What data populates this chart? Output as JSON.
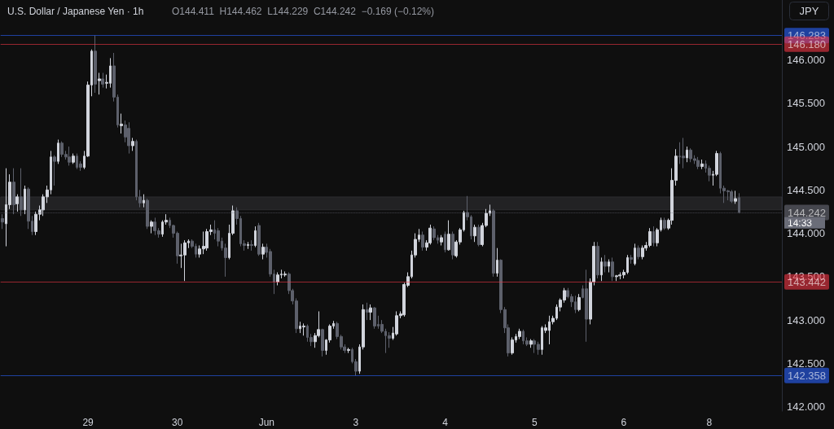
{
  "chart_data": {
    "type": "candlestick",
    "title": "U.S. Dollar / Japanese Yen · 1h",
    "subtitle": "O144.411  H144.462  L144.229  C144.242  −0.169 (−0.12%)",
    "annotations": [
      "JPY",
      "14:33"
    ],
    "categories": [
      null,
      null,
      null,
      null,
      null,
      null,
      null,
      null,
      null,
      null,
      null,
      null,
      null,
      null,
      null,
      null,
      null,
      null,
      null,
      null,
      null,
      null,
      null,
      "29",
      null,
      null,
      null,
      null,
      null,
      null,
      null,
      null,
      null,
      null,
      null,
      null,
      null,
      null,
      null,
      null,
      null,
      null,
      null,
      null,
      null,
      null,
      null,
      "30",
      null,
      null,
      null,
      null,
      null,
      null,
      null,
      null,
      null,
      null,
      null,
      null,
      null,
      null,
      null,
      null,
      null,
      null,
      null,
      null,
      null,
      null,
      null,
      "Jun",
      null,
      null,
      null,
      null,
      null,
      null,
      null,
      null,
      null,
      null,
      null,
      null,
      null,
      null,
      null,
      null,
      null,
      null,
      null,
      null,
      null,
      null,
      null,
      "3",
      null,
      null,
      null,
      null,
      null,
      null,
      null,
      null,
      null,
      null,
      null,
      null,
      null,
      null,
      null,
      null,
      null,
      null,
      null,
      null,
      null,
      null,
      null,
      "4",
      null,
      null,
      null,
      null,
      null,
      null,
      null,
      null,
      null,
      null,
      null,
      null,
      null,
      null,
      null,
      null,
      null,
      null,
      null,
      null,
      null,
      null,
      null,
      "5",
      null,
      null,
      null,
      null,
      null,
      null,
      null,
      null,
      null,
      null,
      null,
      null,
      null,
      null,
      null,
      null,
      null,
      null,
      null,
      null,
      null,
      null,
      null,
      "6",
      null,
      null,
      null,
      null,
      null,
      null,
      null,
      null,
      null,
      null,
      null,
      null,
      null,
      null,
      null,
      null,
      null,
      null,
      null,
      null,
      null,
      null,
      "8",
      null,
      null,
      null,
      null,
      null,
      null,
      null,
      null
    ],
    "ohlc": [
      [
        144.17,
        144.22,
        144.05,
        144.13
      ],
      [
        144.11,
        144.75,
        143.85,
        144.33
      ],
      [
        144.33,
        144.68,
        144.28,
        144.59
      ],
      [
        144.59,
        144.75,
        144.22,
        144.33
      ],
      [
        144.34,
        144.45,
        144.25,
        144.42
      ],
      [
        144.42,
        144.75,
        144.2,
        144.27
      ],
      [
        144.27,
        144.55,
        144.22,
        144.51
      ],
      [
        144.51,
        144.53,
        144.05,
        144.14
      ],
      [
        144.14,
        144.2,
        143.98,
        144.02
      ],
      [
        144.02,
        144.25,
        143.98,
        144.22
      ],
      [
        144.22,
        144.32,
        144.15,
        144.27
      ],
      [
        144.27,
        144.45,
        144.2,
        144.42
      ],
      [
        144.42,
        144.55,
        144.35,
        144.5
      ],
      [
        144.5,
        144.95,
        144.45,
        144.88
      ],
      [
        144.88,
        144.9,
        144.55,
        144.83
      ],
      [
        144.83,
        145.08,
        144.8,
        145.04
      ],
      [
        145.04,
        145.06,
        144.88,
        144.91
      ],
      [
        144.91,
        144.95,
        144.85,
        144.88
      ],
      [
        144.88,
        145.0,
        144.78,
        144.82
      ],
      [
        144.82,
        144.92,
        144.8,
        144.89
      ],
      [
        144.89,
        144.92,
        144.74,
        144.76
      ],
      [
        144.8,
        144.83,
        144.72,
        144.76
      ],
      [
        144.76,
        144.95,
        144.74,
        144.89
      ],
      [
        144.89,
        145.75,
        144.88,
        145.71
      ],
      [
        145.71,
        146.12,
        145.58,
        146.1
      ],
      [
        146.1,
        146.28,
        145.62,
        145.72
      ],
      [
        145.76,
        145.85,
        145.6,
        145.78
      ],
      [
        145.78,
        145.85,
        145.68,
        145.72
      ],
      [
        145.73,
        145.83,
        145.67,
        145.74
      ],
      [
        145.73,
        146.02,
        145.68,
        145.93
      ],
      [
        145.93,
        146.08,
        145.52,
        145.57
      ],
      [
        145.57,
        145.6,
        145.22,
        145.25
      ],
      [
        145.24,
        145.38,
        145.15,
        145.26
      ],
      [
        145.25,
        145.3,
        145.05,
        145.11
      ],
      [
        145.21,
        145.28,
        144.92,
        145.01
      ],
      [
        145.01,
        145.1,
        144.95,
        145.06
      ],
      [
        145.06,
        145.08,
        144.38,
        144.42
      ],
      [
        144.42,
        144.5,
        144.3,
        144.35
      ],
      [
        144.35,
        144.45,
        144.3,
        144.38
      ],
      [
        144.38,
        144.4,
        144.05,
        144.08
      ],
      [
        144.08,
        144.15,
        144.0,
        144.13
      ],
      [
        144.13,
        144.18,
        143.98,
        144.03
      ],
      [
        144.03,
        144.06,
        143.95,
        143.99
      ],
      [
        143.99,
        144.15,
        143.96,
        144.13
      ],
      [
        144.13,
        144.22,
        144.1,
        144.15
      ],
      [
        144.15,
        144.18,
        144.06,
        144.09
      ],
      [
        144.09,
        144.1,
        143.95,
        144.0
      ],
      [
        144.0,
        144.02,
        143.65,
        143.74
      ],
      [
        143.74,
        143.88,
        143.6,
        143.75
      ],
      [
        143.75,
        143.92,
        143.45,
        143.89
      ],
      [
        143.89,
        143.93,
        143.83,
        143.91
      ],
      [
        143.91,
        143.93,
        143.83,
        143.85
      ],
      [
        143.85,
        143.88,
        143.72,
        143.76
      ],
      [
        143.76,
        143.86,
        143.72,
        143.82
      ],
      [
        143.82,
        144.02,
        143.76,
        143.85
      ],
      [
        143.83,
        144.05,
        143.8,
        144.02
      ],
      [
        144.02,
        144.1,
        143.98,
        144.04
      ],
      [
        144.04,
        144.15,
        143.93,
        144.0
      ],
      [
        144.03,
        144.06,
        143.85,
        143.91
      ],
      [
        143.91,
        143.95,
        143.8,
        143.83
      ],
      [
        143.83,
        143.88,
        143.5,
        143.72
      ],
      [
        143.72,
        144.1,
        143.7,
        144.0
      ],
      [
        144.0,
        144.32,
        143.98,
        144.26
      ],
      [
        144.26,
        144.3,
        144.1,
        144.17
      ],
      [
        144.17,
        144.2,
        143.85,
        143.88
      ],
      [
        143.88,
        143.92,
        143.8,
        143.86
      ],
      [
        143.86,
        143.9,
        143.82,
        143.87
      ],
      [
        143.87,
        143.92,
        143.8,
        143.86
      ],
      [
        143.86,
        144.08,
        143.84,
        144.03
      ],
      [
        144.09,
        144.12,
        143.74,
        143.76
      ],
      [
        143.76,
        143.88,
        143.7,
        143.84
      ],
      [
        143.84,
        143.88,
        143.72,
        143.78
      ],
      [
        143.79,
        143.82,
        143.5,
        143.53
      ],
      [
        143.53,
        143.58,
        143.3,
        143.44
      ],
      [
        143.44,
        143.55,
        143.4,
        143.52
      ],
      [
        143.52,
        143.58,
        143.48,
        143.53
      ],
      [
        143.52,
        143.56,
        143.5,
        143.53
      ],
      [
        143.53,
        143.55,
        143.3,
        143.34
      ],
      [
        143.34,
        143.36,
        143.18,
        143.22
      ],
      [
        143.22,
        143.25,
        142.85,
        142.9
      ],
      [
        142.9,
        142.98,
        142.85,
        142.93
      ],
      [
        142.92,
        142.96,
        142.82,
        142.93
      ],
      [
        142.93,
        142.95,
        142.75,
        142.8
      ],
      [
        142.8,
        142.84,
        142.7,
        142.75
      ],
      [
        142.75,
        142.85,
        142.68,
        142.82
      ],
      [
        142.82,
        143.1,
        142.8,
        142.89
      ],
      [
        142.89,
        142.9,
        142.58,
        142.65
      ],
      [
        142.65,
        142.78,
        142.6,
        142.77
      ],
      [
        142.77,
        142.95,
        142.74,
        142.93
      ],
      [
        142.93,
        142.99,
        142.9,
        142.96
      ],
      [
        142.96,
        142.98,
        142.78,
        142.81
      ],
      [
        142.81,
        142.83,
        142.66,
        142.69
      ],
      [
        142.69,
        142.72,
        142.62,
        142.65
      ],
      [
        142.65,
        142.68,
        142.62,
        142.66
      ],
      [
        142.66,
        142.68,
        142.5,
        142.52
      ],
      [
        142.52,
        142.55,
        142.36,
        142.41
      ],
      [
        142.41,
        142.72,
        142.38,
        142.69
      ],
      [
        142.69,
        143.18,
        142.66,
        143.12
      ],
      [
        143.12,
        143.2,
        143.0,
        143.09
      ],
      [
        143.09,
        143.18,
        143.0,
        143.14
      ],
      [
        143.14,
        143.15,
        142.9,
        142.93
      ],
      [
        142.95,
        143.05,
        142.9,
        142.93
      ],
      [
        142.95,
        143.0,
        142.85,
        142.87
      ],
      [
        142.87,
        142.9,
        142.62,
        142.82
      ],
      [
        142.82,
        142.86,
        142.68,
        142.79
      ],
      [
        142.79,
        142.92,
        142.77,
        142.85
      ],
      [
        142.84,
        143.1,
        142.82,
        143.05
      ],
      [
        143.05,
        143.1,
        143.02,
        143.07
      ],
      [
        143.06,
        143.43,
        143.04,
        143.41
      ],
      [
        143.4,
        143.55,
        143.38,
        143.5
      ],
      [
        143.5,
        143.8,
        143.48,
        143.75
      ],
      [
        143.75,
        144.0,
        143.72,
        143.93
      ],
      [
        143.93,
        144.05,
        143.9,
        143.98
      ],
      [
        143.98,
        144.02,
        143.8,
        143.84
      ],
      [
        143.84,
        143.92,
        143.8,
        143.89
      ],
      [
        143.89,
        144.1,
        143.87,
        144.06
      ],
      [
        144.05,
        144.08,
        143.92,
        143.95
      ],
      [
        143.95,
        143.98,
        143.88,
        143.92
      ],
      [
        143.9,
        143.98,
        143.86,
        143.95
      ],
      [
        143.99,
        144.02,
        143.78,
        143.81
      ],
      [
        143.81,
        144.15,
        143.8,
        143.99
      ],
      [
        143.99,
        144.02,
        143.7,
        143.75
      ],
      [
        143.74,
        143.92,
        143.72,
        143.9
      ],
      [
        143.9,
        144.06,
        143.87,
        144.04
      ],
      [
        144.04,
        144.26,
        144.02,
        144.24
      ],
      [
        144.24,
        144.43,
        144.15,
        144.19
      ],
      [
        144.19,
        144.21,
        143.93,
        143.97
      ],
      [
        143.97,
        144.1,
        143.9,
        144.07
      ],
      [
        144.07,
        144.1,
        143.85,
        143.87
      ],
      [
        143.87,
        144.12,
        143.85,
        144.09
      ],
      [
        144.09,
        144.28,
        144.07,
        144.23
      ],
      [
        144.23,
        144.33,
        144.2,
        144.26
      ],
      [
        144.26,
        144.28,
        143.5,
        143.54
      ],
      [
        143.54,
        143.83,
        143.5,
        143.69
      ],
      [
        143.69,
        143.7,
        143.08,
        143.12
      ],
      [
        143.12,
        143.15,
        142.85,
        142.91
      ],
      [
        142.91,
        142.95,
        142.58,
        142.62
      ],
      [
        142.62,
        142.8,
        142.6,
        142.77
      ],
      [
        142.77,
        142.84,
        142.74,
        142.81
      ],
      [
        142.81,
        142.9,
        142.78,
        142.87
      ],
      [
        142.87,
        142.89,
        142.72,
        142.76
      ],
      [
        142.76,
        142.8,
        142.7,
        142.72
      ],
      [
        142.72,
        142.78,
        142.68,
        142.76
      ],
      [
        142.76,
        142.78,
        142.62,
        142.72
      ],
      [
        142.72,
        142.75,
        142.6,
        142.66
      ],
      [
        142.66,
        142.93,
        142.6,
        142.91
      ],
      [
        142.88,
        142.95,
        142.85,
        142.91
      ],
      [
        142.88,
        143.05,
        142.72,
        142.98
      ],
      [
        142.98,
        143.05,
        142.95,
        143.02
      ],
      [
        143.02,
        143.18,
        143.0,
        143.15
      ],
      [
        143.15,
        143.25,
        143.1,
        143.23
      ],
      [
        143.23,
        143.37,
        143.2,
        143.34
      ],
      [
        143.34,
        143.37,
        143.25,
        143.27
      ],
      [
        143.27,
        143.3,
        143.15,
        143.21
      ],
      [
        143.21,
        143.28,
        143.08,
        143.12
      ],
      [
        143.12,
        143.3,
        143.1,
        143.26
      ],
      [
        143.36,
        143.4,
        143.25,
        143.26
      ],
      [
        143.36,
        143.58,
        142.75,
        143.01
      ],
      [
        143.01,
        143.48,
        142.95,
        143.44
      ],
      [
        143.44,
        143.9,
        143.4,
        143.85
      ],
      [
        143.85,
        143.9,
        143.48,
        143.52
      ],
      [
        143.52,
        143.72,
        143.45,
        143.67
      ],
      [
        143.67,
        143.75,
        143.55,
        143.62
      ],
      [
        143.62,
        143.7,
        143.55,
        143.67
      ],
      [
        143.67,
        143.72,
        143.45,
        143.5
      ],
      [
        143.5,
        143.52,
        143.45,
        143.51
      ],
      [
        143.51,
        143.55,
        143.47,
        143.52
      ],
      [
        143.52,
        143.58,
        143.48,
        143.55
      ],
      [
        143.55,
        143.75,
        143.53,
        143.72
      ],
      [
        143.72,
        143.75,
        143.65,
        143.7
      ],
      [
        143.65,
        143.88,
        143.63,
        143.83
      ],
      [
        143.83,
        143.86,
        143.7,
        143.73
      ],
      [
        143.73,
        143.86,
        143.7,
        143.83
      ],
      [
        143.83,
        143.9,
        143.8,
        143.86
      ],
      [
        143.86,
        144.06,
        143.84,
        144.02
      ],
      [
        144.02,
        144.08,
        143.85,
        143.89
      ],
      [
        143.89,
        144.06,
        143.85,
        144.04
      ],
      [
        144.04,
        144.18,
        144.02,
        144.15
      ],
      [
        144.15,
        144.18,
        144.04,
        144.06
      ],
      [
        144.06,
        144.17,
        144.04,
        144.15
      ],
      [
        144.15,
        144.75,
        144.1,
        144.61
      ],
      [
        144.61,
        144.97,
        144.55,
        144.89
      ],
      [
        144.89,
        145.05,
        144.8,
        144.88
      ],
      [
        144.89,
        145.1,
        144.75,
        144.87
      ],
      [
        144.87,
        145.0,
        144.82,
        144.96
      ],
      [
        144.96,
        144.98,
        144.82,
        144.86
      ],
      [
        144.86,
        144.9,
        144.8,
        144.84
      ],
      [
        144.84,
        144.88,
        144.74,
        144.77
      ],
      [
        144.77,
        144.85,
        144.74,
        144.8
      ],
      [
        144.8,
        144.84,
        144.7,
        144.75
      ],
      [
        144.75,
        144.78,
        144.6,
        144.67
      ],
      [
        144.67,
        144.72,
        144.55,
        144.68
      ],
      [
        144.68,
        144.95,
        144.66,
        144.92
      ],
      [
        144.92,
        144.94,
        144.46,
        144.52
      ],
      [
        144.52,
        144.55,
        144.35,
        144.49
      ],
      [
        144.49,
        144.5,
        144.38,
        144.48
      ],
      [
        144.48,
        144.5,
        144.35,
        144.37
      ],
      [
        144.37,
        144.49,
        144.34,
        144.4
      ],
      [
        144.411,
        144.462,
        144.229,
        144.242
      ]
    ],
    "colors": [
      "#5d606b",
      "#d1d4dc",
      "#d1d4dc",
      "#5d606b",
      "#d1d4dc",
      "#5d606b",
      "#d1d4dc",
      "#5d606b",
      "#5d606b",
      "#d1d4dc",
      "#d1d4dc",
      "#d1d4dc",
      "#d1d4dc",
      "#d1d4dc",
      "#5d606b",
      "#d1d4dc",
      "#5d606b",
      "#5d606b",
      "#5d606b",
      "#d1d4dc",
      "#5d606b",
      "#5d606b",
      "#d1d4dc",
      "#d1d4dc",
      "#d1d4dc",
      "#5d606b",
      "#d1d4dc",
      "#5d606b",
      "#d1d4dc",
      "#d1d4dc",
      "#5d606b",
      "#5d606b",
      "#d1d4dc",
      "#5d606b",
      "#5d606b",
      "#d1d4dc",
      "#5d606b",
      "#5d606b",
      "#d1d4dc",
      "#5d606b",
      "#d1d4dc",
      "#5d606b",
      "#5d606b",
      "#d1d4dc",
      "#d1d4dc",
      "#5d606b",
      "#5d606b",
      "#5d606b",
      "#d1d4dc",
      "#d1d4dc",
      "#d1d4dc",
      "#5d606b",
      "#5d606b",
      "#d1d4dc",
      "#d1d4dc",
      "#d1d4dc",
      "#d1d4dc",
      "#5d606b",
      "#5d606b",
      "#5d606b",
      "#5d606b",
      "#d1d4dc",
      "#d1d4dc",
      "#5d606b",
      "#5d606b",
      "#5d606b",
      "#d1d4dc",
      "#5d606b",
      "#d1d4dc",
      "#5d606b",
      "#d1d4dc",
      "#5d606b",
      "#5d606b",
      "#5d606b",
      "#d1d4dc",
      "#d1d4dc",
      "#d1d4dc",
      "#5d606b",
      "#5d606b",
      "#5d606b",
      "#d1d4dc",
      "#d1d4dc",
      "#5d606b",
      "#5d606b",
      "#d1d4dc",
      "#d1d4dc",
      "#5d606b",
      "#d1d4dc",
      "#d1d4dc",
      "#d1d4dc",
      "#5d606b",
      "#5d606b",
      "#5d606b",
      "#d1d4dc",
      "#5d606b",
      "#5d606b",
      "#d1d4dc",
      "#d1d4dc",
      "#5d606b",
      "#d1d4dc",
      "#5d606b",
      "#5d606b",
      "#5d606b",
      "#5d606b",
      "#5d606b",
      "#d1d4dc",
      "#d1d4dc",
      "#d1d4dc",
      "#d1d4dc",
      "#d1d4dc",
      "#d1d4dc",
      "#d1d4dc",
      "#d1d4dc",
      "#5d606b",
      "#d1d4dc",
      "#d1d4dc",
      "#5d606b",
      "#5d606b",
      "#d1d4dc",
      "#5d606b",
      "#d1d4dc",
      "#5d606b",
      "#d1d4dc",
      "#d1d4dc",
      "#d1d4dc",
      "#5d606b",
      "#5d606b",
      "#d1d4dc",
      "#5d606b",
      "#d1d4dc",
      "#d1d4dc",
      "#d1d4dc",
      "#5d606b",
      "#d1d4dc",
      "#5d606b",
      "#5d606b",
      "#5d606b",
      "#d1d4dc",
      "#d1d4dc",
      "#d1d4dc",
      "#5d606b",
      "#5d606b",
      "#d1d4dc",
      "#5d606b",
      "#5d606b",
      "#d1d4dc",
      "#d1d4dc",
      "#d1d4dc",
      "#d1d4dc",
      "#d1d4dc",
      "#d1d4dc",
      "#d1d4dc",
      "#5d606b",
      "#5d606b",
      "#5d606b",
      "#d1d4dc",
      "#5d606b",
      "#5d606b",
      "#d1d4dc",
      "#d1d4dc",
      "#5d606b",
      "#d1d4dc",
      "#5d606b",
      "#d1d4dc",
      "#5d606b",
      "#d1d4dc",
      "#d1d4dc",
      "#d1d4dc",
      "#d1d4dc",
      "#5d606b",
      "#d1d4dc",
      "#5d606b",
      "#d1d4dc",
      "#d1d4dc",
      "#d1d4dc",
      "#5d606b",
      "#d1d4dc",
      "#d1d4dc",
      "#5d606b",
      "#d1d4dc",
      "#d1d4dc",
      "#d1d4dc",
      "#5d606b",
      "#5d606b",
      "#d1d4dc",
      "#5d606b",
      "#5d606b",
      "#5d606b",
      "#d1d4dc",
      "#5d606b",
      "#5d606b",
      "#d1d4dc",
      "#d1d4dc",
      "#5d606b",
      "#5d606b",
      "#5d606b",
      "#5d606b",
      "#d1d4dc",
      "#5d606b"
    ],
    "ylim": [
      141.95,
      146.69
    ],
    "yticks": [
      {
        "value": 142,
        "label": "142.000"
      },
      {
        "value": 142.5,
        "label": "142.500"
      },
      {
        "value": 143,
        "label": "143.000"
      },
      {
        "value": 143.5,
        "label": "143.500"
      },
      {
        "value": 144,
        "label": "144.000"
      },
      {
        "value": 144.5,
        "label": "144.500"
      },
      {
        "value": 145,
        "label": "145.000"
      },
      {
        "value": 145.5,
        "label": "145.500"
      },
      {
        "value": 146,
        "label": "146.000"
      }
    ],
    "ref_lines": [
      {
        "axis": "y",
        "value": 146.283,
        "label": "146.283",
        "color": "#2962ff"
      },
      {
        "axis": "y",
        "value": 146.18,
        "label": "146.180",
        "color": "#f23645"
      },
      {
        "axis": "y",
        "value": 143.442,
        "label": "143.442",
        "color": "#f23645"
      },
      {
        "axis": "y",
        "value": 142.358,
        "label": "142.358",
        "color": "#2962ff"
      },
      {
        "axis": "y",
        "value": 144.242,
        "label": "144.242",
        "color": "#6a6d78",
        "line_style": "dotted"
      }
    ],
    "bands": [
      {
        "axis": "y",
        "from": 144.27,
        "to": 144.42,
        "color": "#787b86"
      }
    ],
    "grid": false
  }
}
